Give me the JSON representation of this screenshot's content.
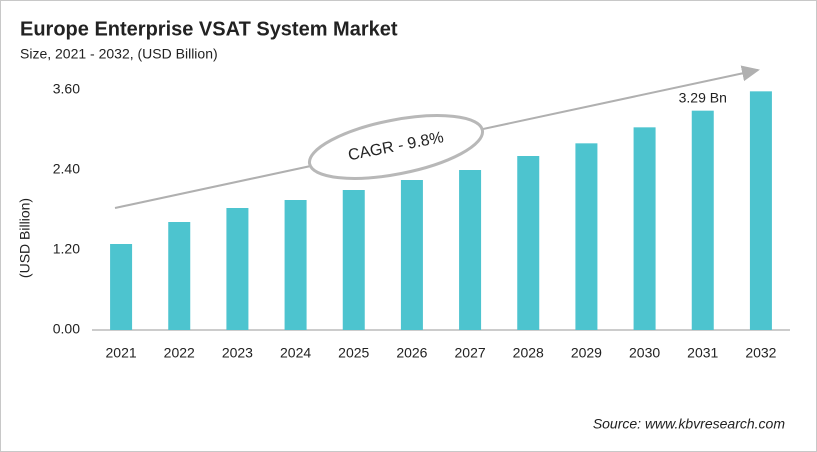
{
  "chart_data": {
    "type": "bar",
    "title": "Europe Enterprise VSAT System Market",
    "subtitle": "Size, 2021 - 2032, (USD Billion)",
    "y_label": "(USD Billion)",
    "categories": [
      "2021",
      "2022",
      "2023",
      "2024",
      "2025",
      "2026",
      "2027",
      "2028",
      "2029",
      "2030",
      "2031",
      "2032"
    ],
    "values": [
      1.29,
      1.62,
      1.83,
      1.95,
      2.1,
      2.25,
      2.4,
      2.61,
      2.8,
      3.04,
      3.29,
      3.58
    ],
    "value_labels": [
      null,
      null,
      null,
      null,
      null,
      null,
      null,
      null,
      null,
      null,
      "3.29 Bn",
      null
    ],
    "color": "#4dc4cf",
    "ylim": [
      0,
      3.6
    ],
    "yticks": [
      {
        "value": 0,
        "label": "0.00"
      },
      {
        "value": 1.2,
        "label": "1.20"
      },
      {
        "value": 2.4,
        "label": "2.40"
      },
      {
        "value": 3.6,
        "label": "3.60"
      }
    ],
    "grid": false,
    "annotation": "CAGR - 9.8%",
    "source": "Source: www.kbvresearch.com"
  }
}
